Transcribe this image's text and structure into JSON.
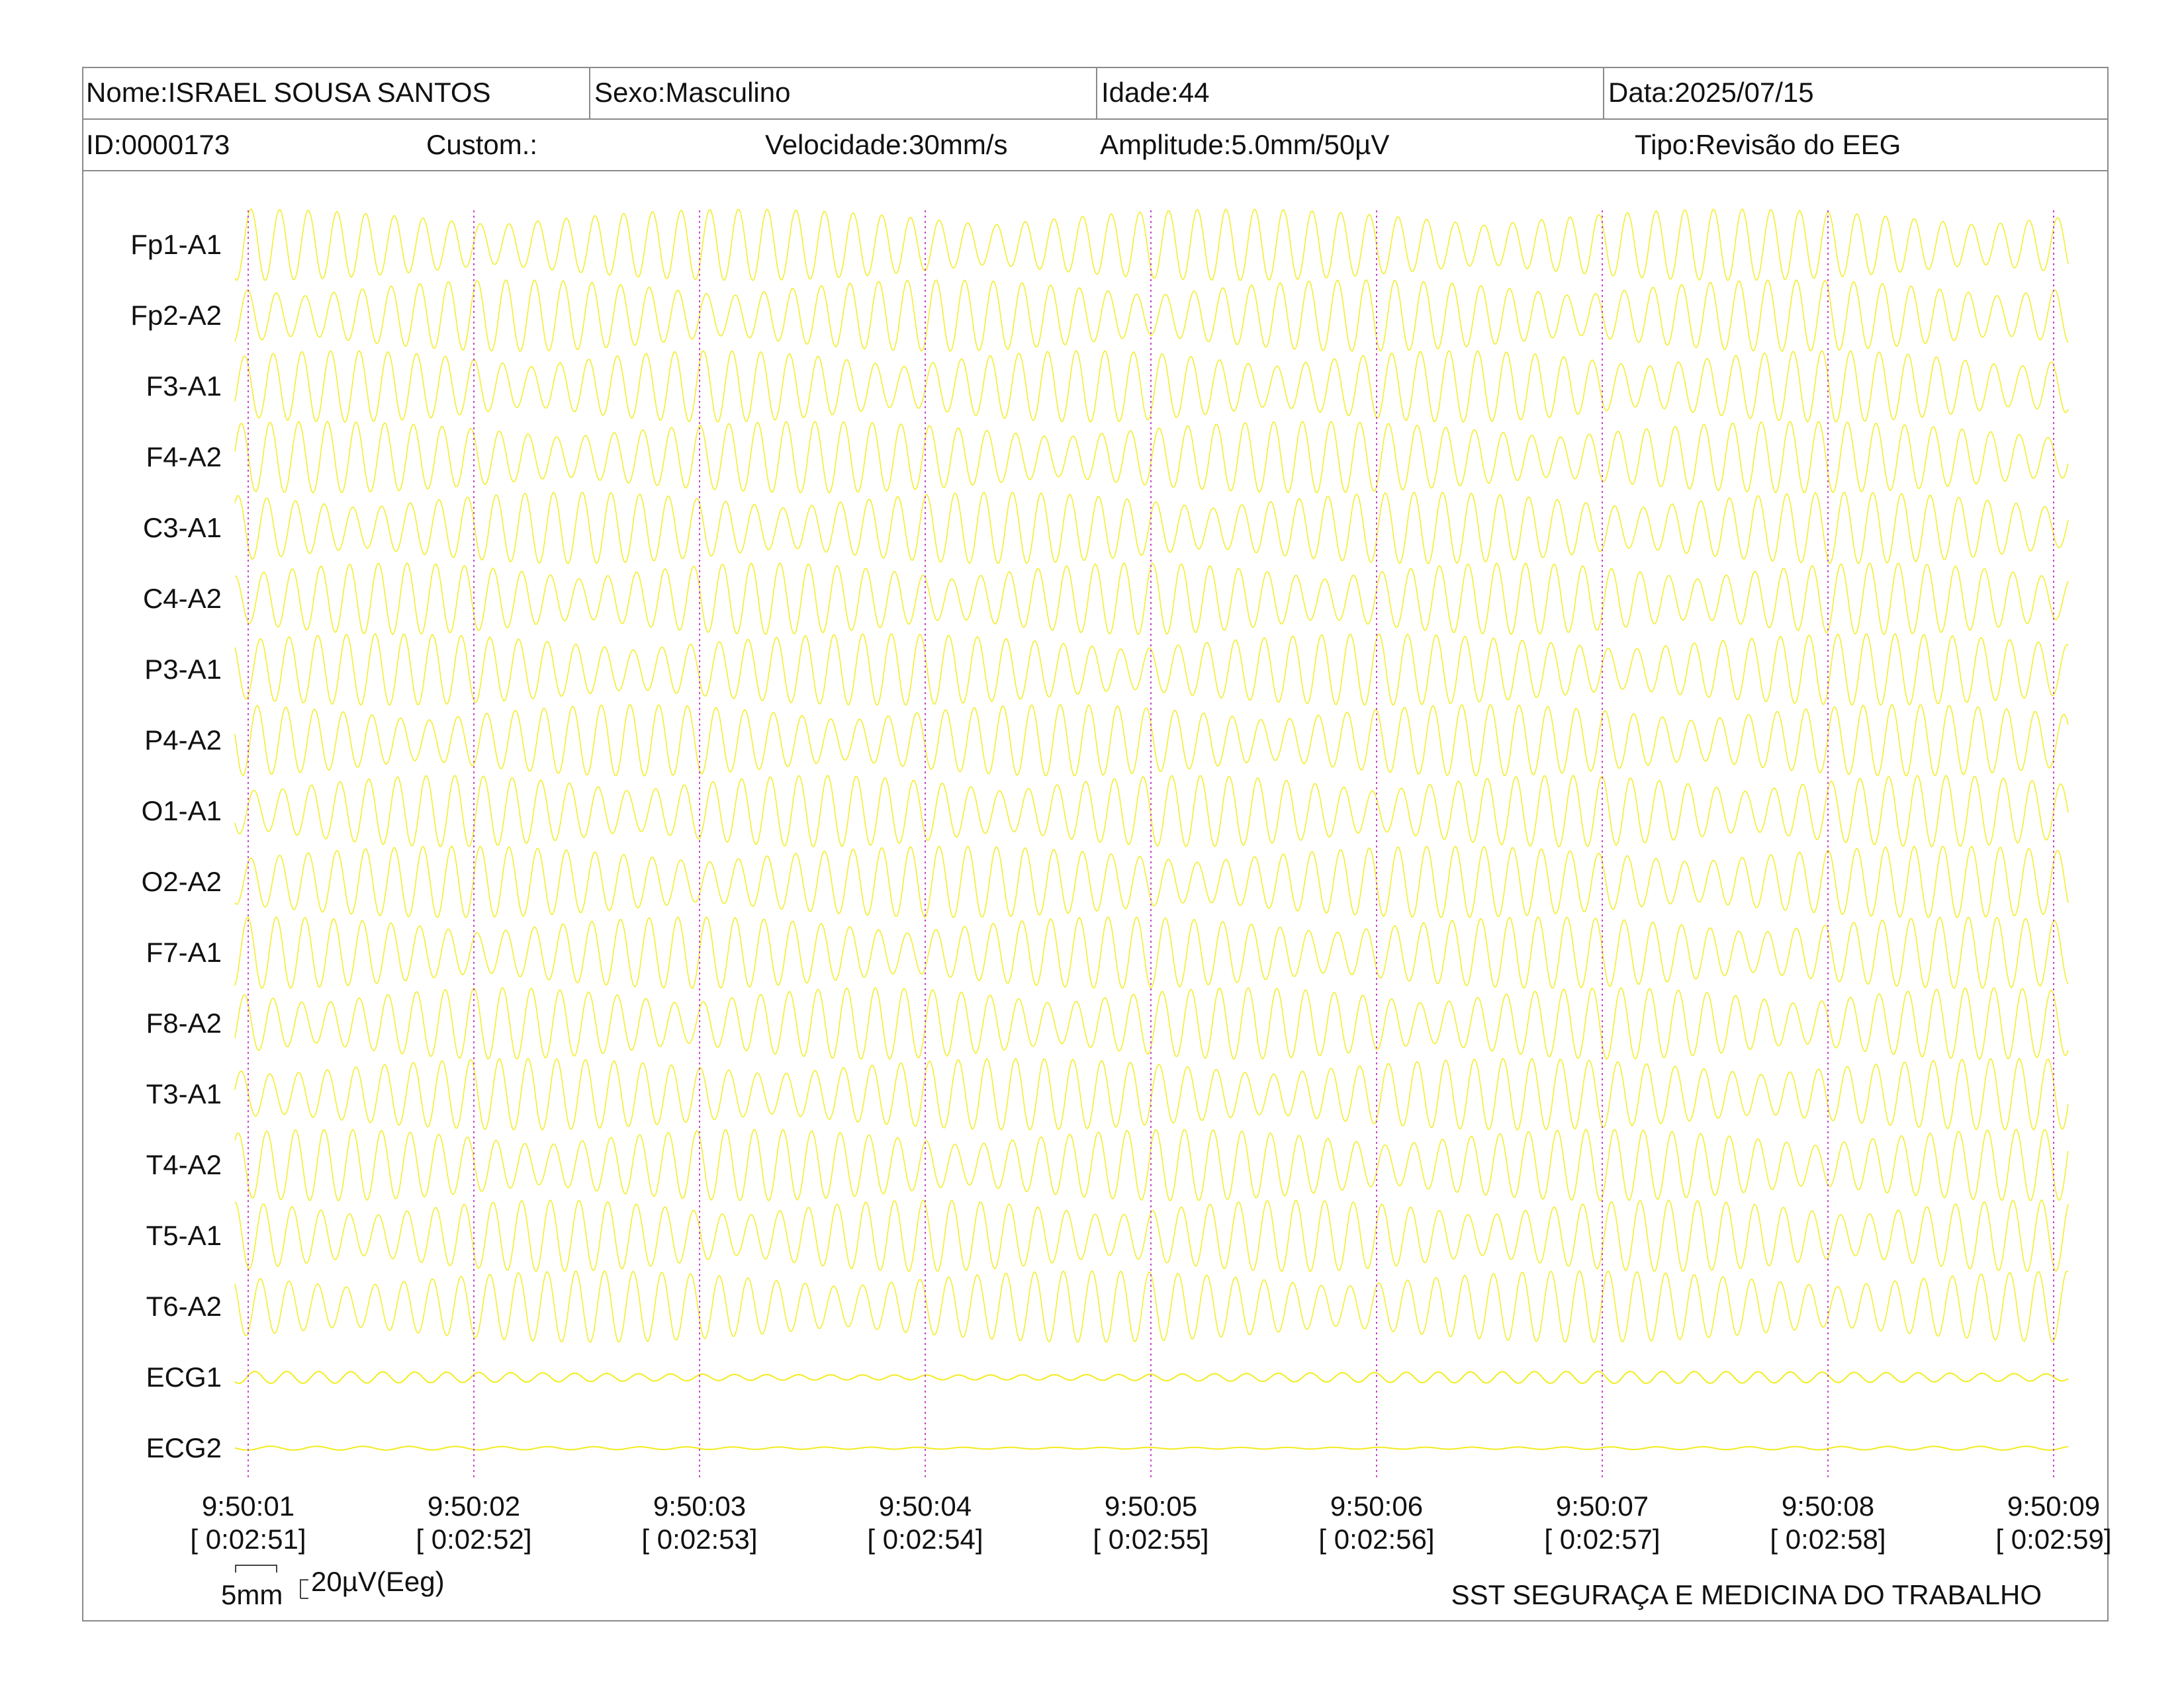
{
  "header": {
    "name": "Nome:ISRAEL SOUSA SANTOS",
    "sex": "Sexo:Masculino",
    "age": "Idade:44",
    "date": "Data:2025/07/15",
    "id": "ID:0000173",
    "custom": "Custom.:",
    "speed": "Velocidade:30mm/s",
    "amplitude": "Amplitude:5.0mm/50µV",
    "type": "Tipo:Revisão do EEG"
  },
  "channels": [
    {
      "label": "Fp1-A1"
    },
    {
      "label": "Fp2-A2"
    },
    {
      "label": "F3-A1"
    },
    {
      "label": "F4-A2"
    },
    {
      "label": "C3-A1"
    },
    {
      "label": "C4-A2"
    },
    {
      "label": "P3-A1"
    },
    {
      "label": "P4-A2"
    },
    {
      "label": "O1-A1"
    },
    {
      "label": "O2-A2"
    },
    {
      "label": "F7-A1"
    },
    {
      "label": "F8-A2"
    },
    {
      "label": "T3-A1"
    },
    {
      "label": "T4-A2"
    },
    {
      "label": "T5-A1"
    },
    {
      "label": "T6-A2"
    },
    {
      "label": "ECG1"
    },
    {
      "label": "ECG2"
    }
  ],
  "time_marks": [
    {
      "clock": "9:50:01",
      "elapsed": "[ 0:02:51]"
    },
    {
      "clock": "9:50:02",
      "elapsed": "[ 0:02:52]"
    },
    {
      "clock": "9:50:03",
      "elapsed": "[ 0:02:53]"
    },
    {
      "clock": "9:50:04",
      "elapsed": "[ 0:02:54]"
    },
    {
      "clock": "9:50:05",
      "elapsed": "[ 0:02:55]"
    },
    {
      "clock": "9:50:06",
      "elapsed": "[ 0:02:56]"
    },
    {
      "clock": "9:50:07",
      "elapsed": "[ 0:02:57]"
    },
    {
      "clock": "9:50:08",
      "elapsed": "[ 0:02:58]"
    },
    {
      "clock": "9:50:09",
      "elapsed": "[ 0:02:59]"
    }
  ],
  "scale": {
    "time_label": "5mm",
    "amp_label": "20µV(Eeg)"
  },
  "footer": {
    "company": "SST SEGURAÇA E MEDICINA DO TRABALHO"
  },
  "colors": {
    "trace": "#f2ec1e",
    "trace_light": "#f6f07a",
    "marker": "#cc44cc",
    "border": "#8a8a8a"
  }
}
